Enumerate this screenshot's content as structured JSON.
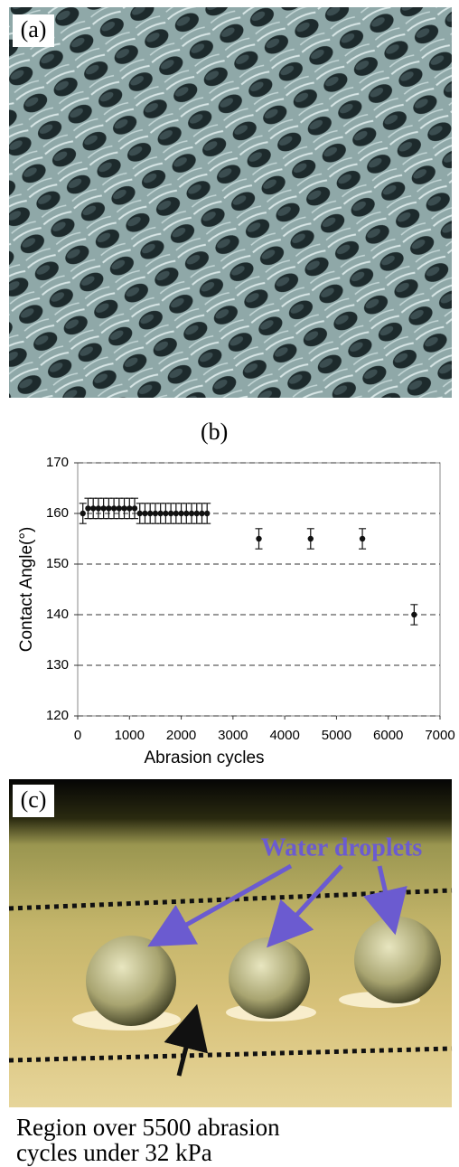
{
  "panel_a": {
    "label": "(a)"
  },
  "chart_data": {
    "type": "scatter",
    "panel_label": "(b)",
    "x_label": "Abrasion cycles",
    "y_label": "Contact Angle(°)",
    "x": [
      100,
      200,
      300,
      400,
      500,
      600,
      700,
      800,
      900,
      1000,
      1100,
      1200,
      1300,
      1400,
      1500,
      1600,
      1700,
      1800,
      1900,
      2000,
      2100,
      2200,
      2300,
      2400,
      2500,
      3500,
      4500,
      5500,
      6500
    ],
    "values": [
      160,
      161,
      161,
      161,
      161,
      161,
      161,
      161,
      161,
      161,
      161,
      160,
      160,
      160,
      160,
      160,
      160,
      160,
      160,
      160,
      160,
      160,
      160,
      160,
      160,
      155,
      155,
      155,
      140
    ],
    "errors": [
      2,
      2,
      2,
      2,
      2,
      2,
      2,
      2,
      2,
      2,
      2,
      2,
      2,
      2,
      2,
      2,
      2,
      2,
      2,
      2,
      2,
      2,
      2,
      2,
      2,
      2,
      2,
      2,
      2
    ],
    "color": "#111111",
    "xlim": [
      0,
      7000
    ],
    "xticks": [
      0,
      1000,
      2000,
      3000,
      4000,
      5000,
      6000,
      7000
    ],
    "ylim": [
      120,
      170
    ],
    "yticks": [
      120,
      130,
      140,
      150,
      160,
      170
    ],
    "grid": "dashed"
  },
  "panel_c": {
    "label": "(c)",
    "annotation": "Water droplets",
    "caption": [
      "Region over 5500 abrasion",
      "cycles under 32 kPa"
    ]
  }
}
